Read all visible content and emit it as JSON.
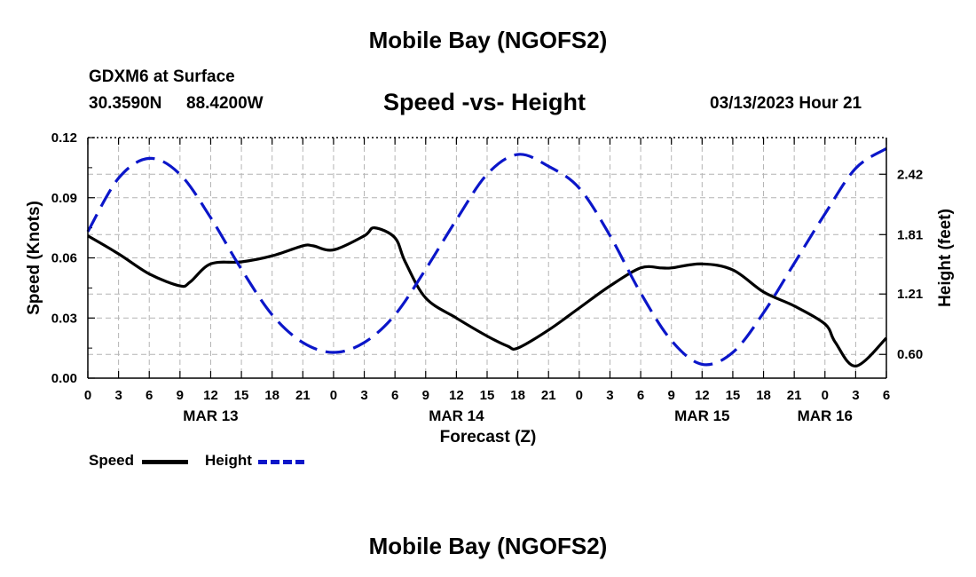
{
  "header": {
    "title": "Mobile Bay (NGOFS2)",
    "station": "GDXM6 at Surface",
    "lat": "30.3590N",
    "lon": "88.4200W",
    "datetime": "03/13/2023 Hour 21",
    "footer_title": "Mobile Bay (NGOFS2)"
  },
  "legend": {
    "speed_label": "Speed",
    "height_label": "Height"
  },
  "chart_data": {
    "type": "line",
    "title": "Speed -vs- Height",
    "xlabel": "Forecast (Z)",
    "ylabel": "Speed (Knots)",
    "y2label": "Height (feet)",
    "xlim": [
      0,
      78
    ],
    "ylim": [
      0,
      0.12
    ],
    "y2lim": [
      0.36,
      2.79
    ],
    "yticks": [
      "0.00",
      "0.03",
      "0.06",
      "0.09",
      "0.12"
    ],
    "yticks_values": [
      0,
      0.03,
      0.06,
      0.09,
      0.12
    ],
    "y2ticks": [
      "0.60",
      "1.21",
      "1.81",
      "2.42"
    ],
    "y2ticks_values": [
      0.6,
      1.21,
      1.81,
      2.42
    ],
    "xtick_labels": [
      "0",
      "3",
      "6",
      "9",
      "12",
      "15",
      "18",
      "21",
      "0",
      "3",
      "6",
      "9",
      "12",
      "15",
      "18",
      "21",
      "0",
      "3",
      "6",
      "9",
      "12",
      "15",
      "18",
      "21",
      "0",
      "3",
      "6"
    ],
    "date_labels": [
      {
        "label": "MAR 13",
        "x": 12
      },
      {
        "label": "MAR 14",
        "x": 36
      },
      {
        "label": "MAR 15",
        "x": 60
      },
      {
        "label": "MAR 16",
        "x": 72
      }
    ],
    "grid": true,
    "colors": {
      "speed": "#000000",
      "height": "#0b16c9",
      "grid": "#b4b4b4"
    },
    "series": [
      {
        "name": "Speed",
        "axis": "left",
        "x": [
          0,
          3,
          6,
          9,
          10,
          12,
          15,
          18,
          21,
          22,
          24,
          27,
          28,
          30,
          31,
          33,
          36,
          39,
          41,
          42,
          45,
          48,
          51,
          54,
          56,
          57,
          60,
          63,
          66,
          69,
          72,
          73,
          75,
          78
        ],
        "values": [
          0.071,
          0.062,
          0.052,
          0.046,
          0.048,
          0.057,
          0.058,
          0.061,
          0.066,
          0.066,
          0.064,
          0.071,
          0.075,
          0.07,
          0.058,
          0.04,
          0.03,
          0.021,
          0.016,
          0.015,
          0.024,
          0.035,
          0.046,
          0.055,
          0.055,
          0.055,
          0.057,
          0.054,
          0.043,
          0.036,
          0.027,
          0.018,
          0.006,
          0.02
        ]
      },
      {
        "name": "Height",
        "axis": "right",
        "x": [
          0,
          3,
          6,
          9,
          12,
          15,
          18,
          21,
          24,
          27,
          30,
          33,
          36,
          39,
          42,
          45,
          48,
          51,
          54,
          57,
          60,
          63,
          66,
          69,
          72,
          75,
          78
        ],
        "values": [
          1.84,
          2.38,
          2.58,
          2.42,
          1.98,
          1.46,
          1.0,
          0.72,
          0.62,
          0.72,
          1.0,
          1.46,
          1.96,
          2.42,
          2.62,
          2.5,
          2.28,
          1.8,
          1.22,
          0.74,
          0.5,
          0.62,
          1.02,
          1.52,
          2.02,
          2.48,
          2.68
        ]
      }
    ]
  }
}
